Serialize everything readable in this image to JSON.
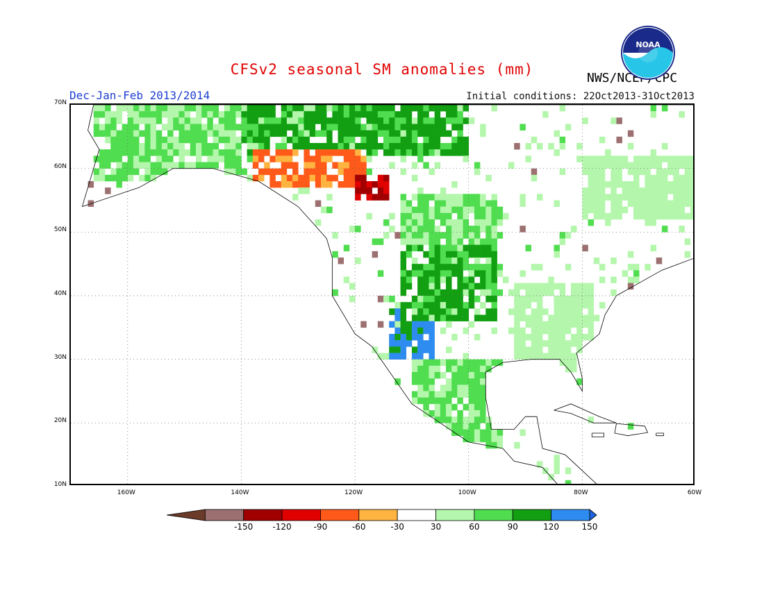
{
  "header": {
    "title": "CFSv2 seasonal SM anomalies (mm)",
    "agency": "NWS/NCEP/CPC",
    "season": "Dec-Jan-Feb 2013/2014",
    "initial_conditions": "Initial conditions: 22Oct2013-31Oct2013",
    "logo_text": "NOAA"
  },
  "map": {
    "type": "gridded anomaly map",
    "region": "North America",
    "lat_range": [
      10,
      70
    ],
    "lon_range": [
      -170,
      -60
    ],
    "grid": true,
    "lat_labels": [
      "70N",
      "60N",
      "50N",
      "40N",
      "30N",
      "20N",
      "10N"
    ],
    "lon_labels": [
      "160W",
      "140W",
      "120W",
      "100W",
      "80W",
      "60W"
    ],
    "anomaly_regions": [
      {
        "name": "northern great plains",
        "lat": [
          42,
          49
        ],
        "lon": [
          -106,
          -98
        ],
        "class": 120
      },
      {
        "name": "southern rockies",
        "lat": [
          30,
          38
        ],
        "lon": [
          -114,
          -106
        ],
        "class": 120
      },
      {
        "name": "great plains moist",
        "lat": [
          36,
          50
        ],
        "lon": [
          -112,
          -95
        ],
        "class": 90
      },
      {
        "name": "eastern us",
        "lat": [
          28,
          42
        ],
        "lon": [
          -92,
          -78
        ],
        "class": 30
      },
      {
        "name": "central canada",
        "lat": [
          48,
          56
        ],
        "lon": [
          -112,
          -94
        ],
        "class": 60
      },
      {
        "name": "arctic coast",
        "lat": [
          62,
          70
        ],
        "lon": [
          -140,
          -100
        ],
        "class": 90
      },
      {
        "name": "alaska",
        "lat": [
          58,
          70
        ],
        "lon": [
          -166,
          -140
        ],
        "class": 60
      },
      {
        "name": "yukon dry",
        "lat": [
          57,
          63
        ],
        "lon": [
          -138,
          -118
        ],
        "class": -60
      },
      {
        "name": "alberta dry",
        "lat": [
          55,
          59
        ],
        "lon": [
          -120,
          -114
        ],
        "class": -120
      },
      {
        "name": "mexico",
        "lat": [
          15,
          30
        ],
        "lon": [
          -110,
          -94
        ],
        "class": 60
      },
      {
        "name": "quebec",
        "lat": [
          52,
          62
        ],
        "lon": [
          -80,
          -60
        ],
        "class": 30
      }
    ]
  },
  "colorbar": {
    "labels": [
      "-150",
      "-120",
      "-90",
      "-60",
      "-30",
      "30",
      "60",
      "90",
      "120",
      "150"
    ],
    "colors": [
      "#6b3a28",
      "#9c7070",
      "#a00000",
      "#e00000",
      "#ff5a1a",
      "#ffb340",
      "#ffffff",
      "#b4f7ac",
      "#50dd50",
      "#12a012",
      "#2e8cf0",
      "#1e64dc"
    ]
  }
}
